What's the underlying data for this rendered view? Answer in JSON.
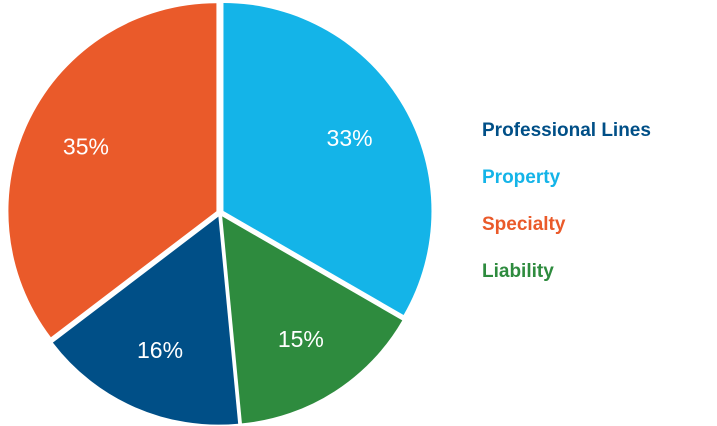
{
  "chart_data": {
    "type": "pie",
    "slices": [
      {
        "name": "Property",
        "value": 33,
        "label": "33%",
        "color": "#14b4e8"
      },
      {
        "name": "Liability",
        "value": 15,
        "label": "15%",
        "color": "#2e8b3e"
      },
      {
        "name": "Professional Lines",
        "value": 16,
        "label": "16%",
        "color": "#004f87"
      },
      {
        "name": "Specialty",
        "value": 35,
        "label": "35%",
        "color": "#ea5a2a"
      }
    ],
    "legend_placement": "right",
    "legend": [
      {
        "name": "Professional Lines",
        "color": "#004f87"
      },
      {
        "name": "Property",
        "color": "#14b4e8"
      },
      {
        "name": "Specialty",
        "color": "#ea5a2a"
      },
      {
        "name": "Liability",
        "color": "#2e8b3e"
      }
    ]
  }
}
